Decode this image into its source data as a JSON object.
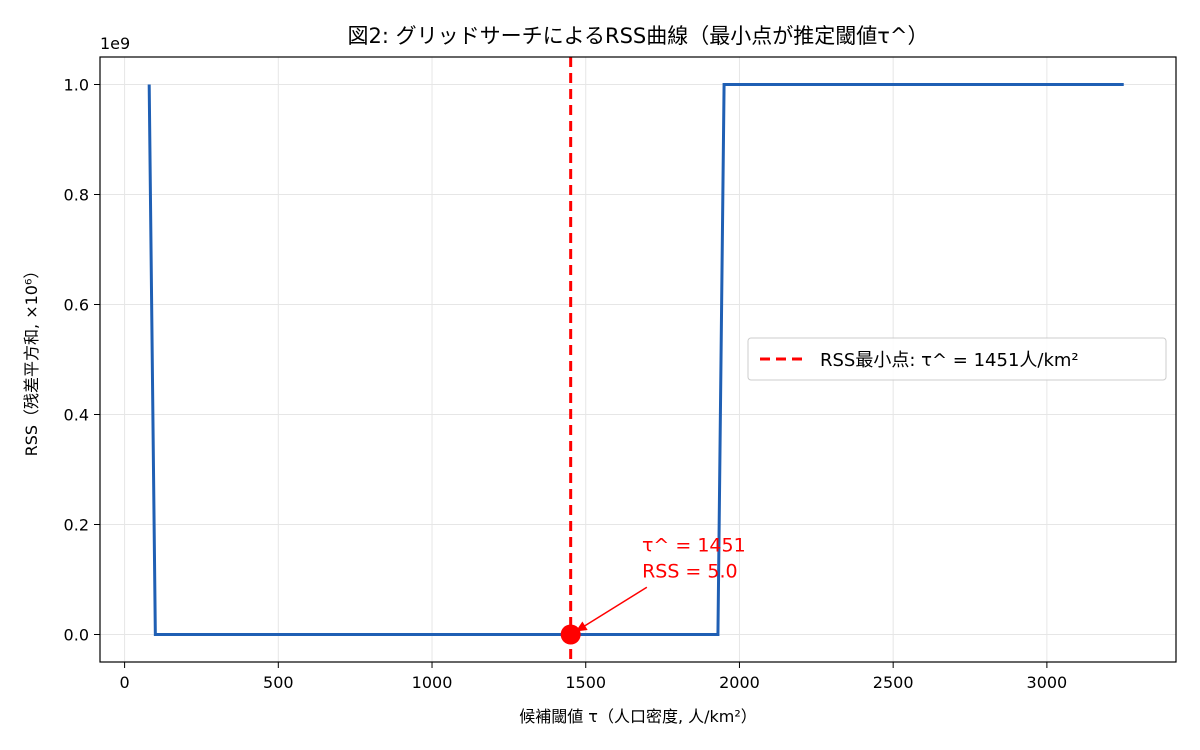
{
  "chart_data": {
    "type": "line",
    "title": "図2: グリッドサーチによるRSS曲線（最小点が推定閾値τ^）",
    "xlabel": "候補閾値 τ（人口密度, 人/km²）",
    "ylabel": "RSS（残差平方和, ×10⁶）",
    "y_offset_label": "1e9",
    "xlim": [
      -80,
      3420
    ],
    "ylim": [
      -0.05,
      1.05
    ],
    "x_ticks": [
      0,
      500,
      1000,
      1500,
      2000,
      2500,
      3000
    ],
    "x_tick_labels": [
      "0",
      "500",
      "1000",
      "1500",
      "2000",
      "2500",
      "3000"
    ],
    "y_ticks": [
      0.0,
      0.2,
      0.4,
      0.6,
      0.8,
      1.0
    ],
    "y_tick_labels": [
      "0.0",
      "0.2",
      "0.4",
      "0.6",
      "0.8",
      "1.0"
    ],
    "grid": true,
    "series": [
      {
        "color": "#1f5fb4",
        "x": [
          80,
          100,
          1930,
          1950,
          3250
        ],
        "y": [
          1.0,
          0.0,
          0.0,
          1.0,
          1.0
        ]
      }
    ],
    "vline": {
      "x": 1451,
      "color": "#ff0000",
      "legend_label": "RSS最小点: τ^ = 1451人/km²"
    },
    "marker": {
      "x": 1451,
      "y": 0.0,
      "color": "#ff0000"
    },
    "annotation": {
      "line1": "τ^ = 1451",
      "line2": "RSS = 5.0",
      "text_x": 1650,
      "text_y": 0.115,
      "color": "#ff0000"
    },
    "legend_position": "center-right"
  }
}
